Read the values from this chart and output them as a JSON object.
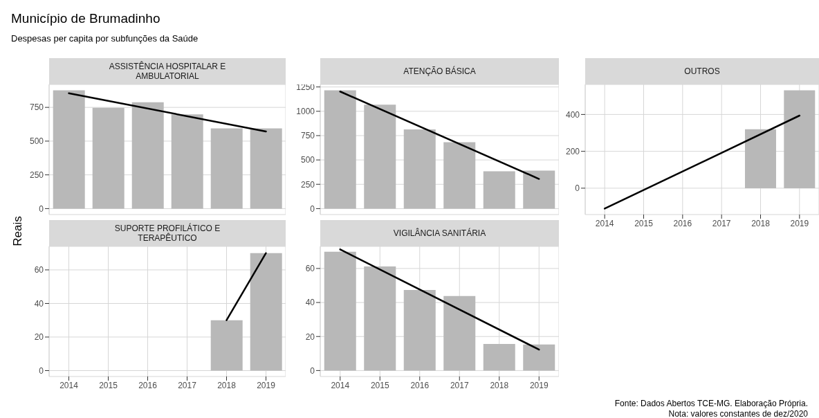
{
  "chart_data": [
    {
      "type": "other",
      "title": "Município de Brumadinho",
      "subtitle": "Despesas per capita por subfunções da Saúde",
      "ylabel": "Reais",
      "annotations": [
        "Fonte: Dados Abertos TCE-MG. Elaboração Própria.",
        "Nota: valores constantes de dez/2020"
      ]
    },
    {
      "type": "bar",
      "title": "ASSISTÊNCIA HOSPITALAR E AMBULATORIAL",
      "categories": [
        "2014",
        "2015",
        "2016",
        "2017",
        "2018",
        "2019"
      ],
      "tick_labels": "y",
      "grid": true,
      "ylim": [
        -44,
        920
      ],
      "yticks": [
        0,
        250,
        500,
        750
      ],
      "series": [
        {
          "color": "#b8b8b8",
          "values": [
            876,
            747,
            788,
            698,
            595,
            595
          ]
        },
        {
          "type": "line",
          "color": "#000000",
          "values": [
            855,
            null,
            null,
            null,
            null,
            571
          ]
        }
      ]
    },
    {
      "type": "bar",
      "title": "ATENÇÃO BÁSICA",
      "categories": [
        "2014",
        "2015",
        "2016",
        "2017",
        "2018",
        "2019"
      ],
      "tick_labels": "y",
      "grid": true,
      "ylim": [
        -61,
        1276
      ],
      "yticks": [
        0,
        250,
        500,
        750,
        1000,
        1250
      ],
      "series": [
        {
          "color": "#b8b8b8",
          "values": [
            1215,
            1068,
            813,
            683,
            383,
            390
          ]
        },
        {
          "type": "line",
          "color": "#000000",
          "values": [
            1203,
            null,
            null,
            null,
            null,
            305
          ]
        }
      ]
    },
    {
      "type": "bar",
      "title": "OUTROS",
      "categories": [
        "2014",
        "2015",
        "2016",
        "2017",
        "2018",
        "2019"
      ],
      "grid": true,
      "ylim": [
        -143,
        563
      ],
      "yticks": [
        0,
        200,
        400
      ],
      "series": [
        {
          "color": "#b8b8b8",
          "values": [
            null,
            null,
            null,
            null,
            320,
            531
          ]
        },
        {
          "type": "line",
          "color": "#000000",
          "values": [
            -111,
            null,
            null,
            null,
            null,
            394
          ]
        }
      ]
    },
    {
      "type": "bar",
      "title": "SUPORTE PROFILÁTICO E TERAPÊUTICO",
      "categories": [
        "2014",
        "2015",
        "2016",
        "2017",
        "2018",
        "2019"
      ],
      "grid": true,
      "ylim": [
        -3.5,
        74
      ],
      "yticks": [
        0,
        20,
        40,
        60
      ],
      "series": [
        {
          "color": "#b8b8b8",
          "values": [
            null,
            null,
            null,
            null,
            30,
            70
          ]
        },
        {
          "type": "line",
          "color": "#000000",
          "values": [
            null,
            null,
            null,
            null,
            30,
            70
          ]
        }
      ]
    },
    {
      "type": "bar",
      "title": "VIGILÂNCIA SANITÁRIA",
      "categories": [
        "2014",
        "2015",
        "2016",
        "2017",
        "2018",
        "2019"
      ],
      "grid": true,
      "ylim": [
        -3.5,
        73
      ],
      "yticks": [
        0,
        20,
        40,
        60
      ],
      "series": [
        {
          "color": "#b8b8b8",
          "values": [
            69.8,
            61.2,
            47.4,
            43.8,
            15.6,
            15.3
          ]
        },
        {
          "type": "line",
          "color": "#000000",
          "values": [
            71.2,
            null,
            null,
            null,
            null,
            12.3
          ]
        }
      ]
    }
  ]
}
